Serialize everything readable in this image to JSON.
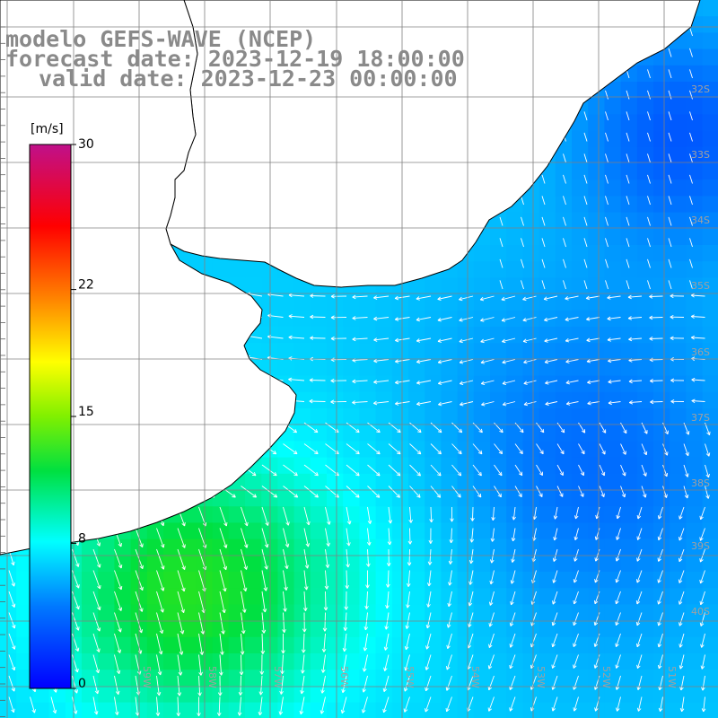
{
  "title": {
    "model": "modelo GEFS-WAVE (NCEP)",
    "forecast": "forecast date: 2023-12-19 18:00:00",
    "valid": "valid date: 2023-12-23 00:00:00"
  },
  "colorbar": {
    "unit": "[m/s]",
    "ticks": [
      "30",
      "22",
      "15",
      "8",
      "0"
    ],
    "tick_values": [
      30,
      22,
      15,
      8,
      0
    ],
    "range": [
      0,
      30
    ],
    "colors": [
      "#0000ff",
      "#00a0ff",
      "#00ffff",
      "#00ff80",
      "#00e000",
      "#a0ff00",
      "#ffff00",
      "#ffa000",
      "#ff4000",
      "#ff0000",
      "#e00060",
      "#c0108a"
    ]
  },
  "latitude_labels": [
    "32S",
    "33S",
    "34S",
    "35S",
    "36S",
    "37S",
    "38S",
    "39S",
    "40S"
  ],
  "longitude_labels": [
    "59W",
    "58W",
    "57W",
    "56W",
    "55W",
    "54W",
    "53W",
    "52W",
    "51W"
  ],
  "map": {
    "land_color": "#ffffff",
    "grid_color": "#808080",
    "coast_color": "#000000",
    "arrow_color": "#ffffff"
  }
}
